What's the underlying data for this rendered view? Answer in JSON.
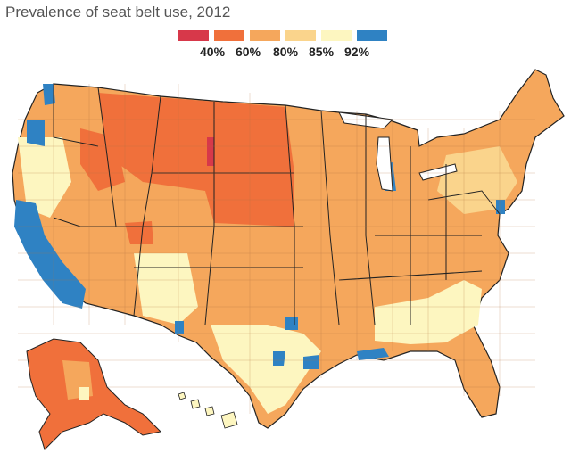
{
  "title": "Prevalence of seat belt use, 2012",
  "legend": {
    "items": [
      {
        "label": "40%",
        "color": "#d7384a"
      },
      {
        "label": "60%",
        "color": "#f0703b"
      },
      {
        "label": "80%",
        "color": "#f5a75c"
      },
      {
        "label": "85%",
        "color": "#fad48c"
      },
      {
        "label": "92%",
        "color": "#2f82c3"
      }
    ],
    "extra_color": "#fdf6c0"
  },
  "colors": {
    "c40": "#d7384a",
    "c60": "#f0703b",
    "c80": "#f5a75c",
    "c85": "#fad48c",
    "c90": "#fdf6c0",
    "c92": "#2f82c3",
    "border": "#222222",
    "county_line": "#b07040"
  },
  "regions": [
    {
      "name": "us-mainland",
      "fill": "c80"
    },
    {
      "name": "north-plains",
      "fill": "c60"
    },
    {
      "name": "idaho-red",
      "fill": "c60"
    },
    {
      "name": "alaska",
      "fill": "c60"
    },
    {
      "name": "hawaii",
      "fill": "c90"
    },
    {
      "name": "california-blue",
      "fill": "c92"
    },
    {
      "name": "washington-blue",
      "fill": "c92"
    }
  ]
}
